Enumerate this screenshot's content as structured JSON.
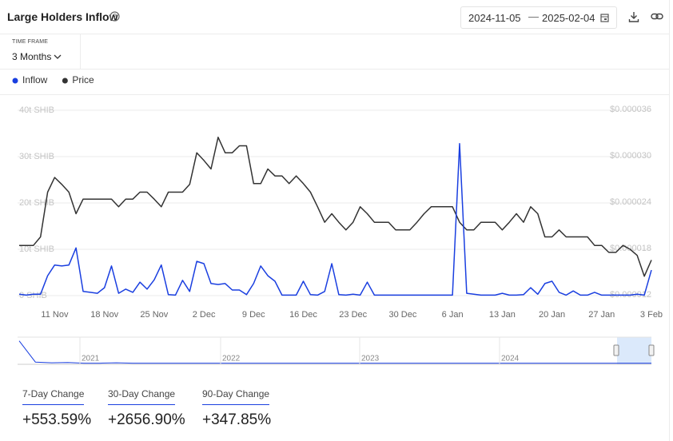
{
  "header": {
    "title": "Large Holders Inflow",
    "start_date": "2024-11-05",
    "end_date": "2025-02-04"
  },
  "time_frame": {
    "label": "TIME FRAME",
    "value": "3 Months"
  },
  "chart_data": {
    "type": "line",
    "categories": [
      null,
      null,
      null,
      null,
      null,
      "11 Nov",
      null,
      null,
      null,
      null,
      null,
      null,
      "18 Nov",
      null,
      null,
      null,
      null,
      null,
      null,
      "25 Nov",
      null,
      null,
      null,
      null,
      null,
      null,
      "2 Dec",
      null,
      null,
      null,
      null,
      null,
      null,
      "9 Dec",
      null,
      null,
      null,
      null,
      null,
      null,
      "16 Dec",
      null,
      null,
      null,
      null,
      null,
      null,
      "23 Dec",
      null,
      null,
      null,
      null,
      null,
      null,
      "30 Dec",
      null,
      null,
      null,
      null,
      null,
      null,
      "6 Jan",
      null,
      null,
      null,
      null,
      null,
      null,
      "13 Jan",
      null,
      null,
      null,
      null,
      null,
      null,
      "20 Jan",
      null,
      null,
      null,
      null,
      null,
      null,
      "27 Jan",
      null,
      null,
      null,
      null,
      null,
      null,
      "3 Feb"
    ],
    "series": [
      {
        "name": "Inflow",
        "color": "#1a3fe0",
        "values": [
          0.3,
          0.1,
          0.3,
          0.3,
          4.3,
          6.6,
          6.4,
          6.6,
          10.3,
          0.9,
          0.7,
          0.5,
          1.7,
          6.4,
          0.5,
          1.4,
          0.7,
          2.9,
          1.4,
          3.4,
          6.6,
          0.2,
          0.1,
          3.3,
          0.9,
          7.4,
          6.9,
          2.6,
          2.4,
          2.6,
          1.2,
          1.2,
          0.2,
          2.6,
          6.4,
          4.3,
          3.1,
          0.1,
          0.1,
          0.1,
          3.1,
          0.2,
          0.1,
          0.9,
          6.9,
          0.2,
          0.1,
          0.3,
          0.1,
          2.9,
          0.1,
          0.1,
          0.1,
          0.1,
          0.1,
          0.1,
          0.1,
          0.1,
          0.1,
          0.1,
          0.1,
          0.1,
          32.8,
          0.5,
          0.3,
          0.1,
          0.1,
          0.1,
          0.5,
          0.1,
          0.1,
          0.2,
          1.7,
          0.3,
          2.6,
          3.1,
          0.7,
          0.1,
          1.0,
          0.1,
          0.1,
          0.7,
          0.1,
          0.1,
          0.1,
          0.1,
          0.1,
          0.3,
          0.1,
          5.5
        ]
      },
      {
        "name": "Price",
        "color": "#333333",
        "axis": "y2",
        "values": [
          1.85e-05,
          1.85e-05,
          1.85e-05,
          1.96e-05,
          2.54e-05,
          2.73e-05,
          2.64e-05,
          2.54e-05,
          2.26e-05,
          2.45e-05,
          2.45e-05,
          2.45e-05,
          2.45e-05,
          2.45e-05,
          2.35e-05,
          2.45e-05,
          2.45e-05,
          2.54e-05,
          2.54e-05,
          2.45e-05,
          2.35e-05,
          2.54e-05,
          2.54e-05,
          2.54e-05,
          2.64e-05,
          3.05e-05,
          2.95e-05,
          2.84e-05,
          3.25e-05,
          3.05e-05,
          3.05e-05,
          3.14e-05,
          3.14e-05,
          2.65e-05,
          2.65e-05,
          2.84e-05,
          2.75e-05,
          2.75e-05,
          2.65e-05,
          2.75e-05,
          2.65e-05,
          2.54e-05,
          2.35e-05,
          2.15e-05,
          2.26e-05,
          2.15e-05,
          2.05e-05,
          2.15e-05,
          2.35e-05,
          2.26e-05,
          2.15e-05,
          2.15e-05,
          2.15e-05,
          2.05e-05,
          2.05e-05,
          2.05e-05,
          2.15e-05,
          2.26e-05,
          2.35e-05,
          2.35e-05,
          2.35e-05,
          2.35e-05,
          2.15e-05,
          2.05e-05,
          2.05e-05,
          2.15e-05,
          2.15e-05,
          2.15e-05,
          2.05e-05,
          2.15e-05,
          2.26e-05,
          2.15e-05,
          2.35e-05,
          2.26e-05,
          1.96e-05,
          1.96e-05,
          2.05e-05,
          1.96e-05,
          1.96e-05,
          1.96e-05,
          1.96e-05,
          1.85e-05,
          1.85e-05,
          1.76e-05,
          1.76e-05,
          1.85e-05,
          1.8e-05,
          1.72e-05,
          1.45e-05,
          1.66e-05
        ]
      }
    ],
    "ylim": [
      0,
      40
    ],
    "yticks": [
      {
        "value": 0,
        "label": "0 SHIB"
      },
      {
        "value": 10,
        "label": "10t SHIB"
      },
      {
        "value": 20,
        "label": "20t SHIB"
      },
      {
        "value": 30,
        "label": "30t SHIB"
      },
      {
        "value": 40,
        "label": "40t SHIB"
      }
    ],
    "y2lim": [
      1.2e-05,
      3.6e-05
    ],
    "y2ticks": [
      {
        "value": 1.2e-05,
        "label": "$0.000012"
      },
      {
        "value": 1.8e-05,
        "label": "$0.000018"
      },
      {
        "value": 2.4e-05,
        "label": "$0.000024"
      },
      {
        "value": 3e-05,
        "label": "$0.000030"
      },
      {
        "value": 3.6e-05,
        "label": "$0.000036"
      }
    ],
    "grid": true,
    "legend": "top-left"
  },
  "navigator": {
    "labels": [
      "2021",
      "2022",
      "2023",
      "2024"
    ],
    "ylim": [
      0,
      35
    ],
    "values": [
      32,
      2,
      1,
      1.5,
      0.5,
      0.5,
      1,
      0.5,
      0.5,
      0.5,
      0.5,
      0.5,
      0.5,
      0.5,
      0.5,
      0.5,
      0.5,
      0.5,
      0.5,
      0.5,
      0.5,
      0.5,
      0.5,
      0.5,
      0.5,
      0.5,
      0.5,
      0.5,
      0.5,
      0.5,
      0.5,
      0.5,
      0.5,
      0.5,
      0.5,
      0.5,
      0.5,
      0.5,
      0.5,
      0.5
    ]
  },
  "stats": [
    {
      "label": "7-Day Change",
      "value": "+553.59%"
    },
    {
      "label": "30-Day Change",
      "value": "+2656.90%"
    },
    {
      "label": "90-Day Change",
      "value": "+347.85%"
    }
  ]
}
